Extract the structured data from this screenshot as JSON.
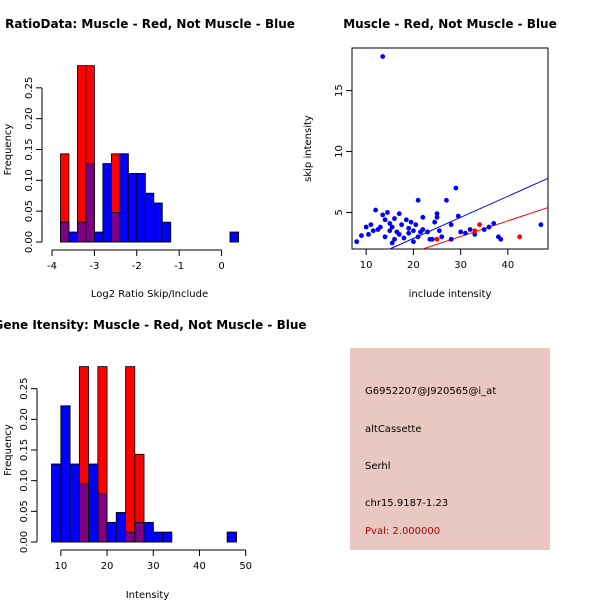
{
  "colors": {
    "red": "#ff0000",
    "blue": "#0000ff",
    "overlap": "#7f007f",
    "panel_bg": "#e8c8c0",
    "pval": "#b00000"
  },
  "chart_data": [
    {
      "id": "ratio",
      "type": "bar",
      "title": "RatioData: Muscle - Red, Not Muscle - Blue",
      "xlabel": "Log2 Ratio Skip/Include",
      "ylabel": "Frequency",
      "xlim": [
        -4,
        0.6
      ],
      "ylim": [
        0,
        0.3
      ],
      "xticks": [
        -4,
        -3,
        -2,
        -1,
        0
      ],
      "xtick_labels": [
        "-4",
        "-3",
        "-2",
        "-1",
        "0"
      ],
      "yticks": [
        0,
        0.05,
        0.1,
        0.15,
        0.2,
        0.25
      ],
      "ytick_labels": [
        "0.00",
        "0.05",
        "0.10",
        "0.15",
        "0.20",
        "0.25"
      ],
      "bin_width": 0.2,
      "series": [
        {
          "name": "Muscle",
          "color": "red",
          "bins": [
            {
              "x": -3.8,
              "v": 0.143
            },
            {
              "x": -3.4,
              "v": 0.286
            },
            {
              "x": -3.2,
              "v": 0.286
            },
            {
              "x": -2.6,
              "v": 0.143
            }
          ]
        },
        {
          "name": "Not Muscle",
          "color": "blue",
          "bins": [
            {
              "x": -3.8,
              "v": 0.032
            },
            {
              "x": -3.6,
              "v": 0.016
            },
            {
              "x": -3.4,
              "v": 0.032
            },
            {
              "x": -3.2,
              "v": 0.127
            },
            {
              "x": -3.0,
              "v": 0.016
            },
            {
              "x": -2.8,
              "v": 0.127
            },
            {
              "x": -2.6,
              "v": 0.048
            },
            {
              "x": -2.4,
              "v": 0.143
            },
            {
              "x": -2.2,
              "v": 0.111
            },
            {
              "x": -2.0,
              "v": 0.111
            },
            {
              "x": -1.8,
              "v": 0.079
            },
            {
              "x": -1.6,
              "v": 0.063
            },
            {
              "x": -1.4,
              "v": 0.032
            },
            {
              "x": 0.2,
              "v": 0.016
            }
          ]
        }
      ]
    },
    {
      "id": "scatter",
      "type": "scatter",
      "title": "Muscle - Red, Not Muscle - Blue",
      "xlabel": "include intensity",
      "ylabel": "skip intensity",
      "xlim": [
        7,
        48.5
      ],
      "ylim": [
        2,
        18.5
      ],
      "xticks": [
        10,
        20,
        30,
        40
      ],
      "xtick_labels": [
        "10",
        "20",
        "30",
        "40"
      ],
      "yticks": [
        5,
        10,
        15
      ],
      "ytick_labels": [
        "5",
        "10",
        "15"
      ],
      "blue_points": [
        [
          8,
          2.6
        ],
        [
          9,
          3.1
        ],
        [
          10,
          3.8
        ],
        [
          10.5,
          3.2
        ],
        [
          11,
          4.0
        ],
        [
          11.5,
          3.5
        ],
        [
          12,
          5.2
        ],
        [
          12.5,
          3.6
        ],
        [
          13,
          3.8
        ],
        [
          13.5,
          17.8
        ],
        [
          13.5,
          4.8
        ],
        [
          14,
          3.0
        ],
        [
          14,
          4.4
        ],
        [
          14.5,
          5.0
        ],
        [
          15,
          3.5
        ],
        [
          15,
          4.1
        ],
        [
          15.5,
          2.5
        ],
        [
          15.5,
          3.8
        ],
        [
          16,
          4.5
        ],
        [
          16,
          2.8
        ],
        [
          16.5,
          3.4
        ],
        [
          17,
          4.9
        ],
        [
          17,
          3.2
        ],
        [
          17.5,
          4.0
        ],
        [
          18,
          2.9
        ],
        [
          18.5,
          4.4
        ],
        [
          19,
          3.7
        ],
        [
          19,
          3.3
        ],
        [
          19.5,
          4.2
        ],
        [
          20,
          2.6
        ],
        [
          20,
          3.5
        ],
        [
          20.5,
          4.0
        ],
        [
          21,
          6.0
        ],
        [
          21,
          3.0
        ],
        [
          21.5,
          3.4
        ],
        [
          22,
          4.6
        ],
        [
          22,
          3.6
        ],
        [
          23,
          3.4
        ],
        [
          23.5,
          2.8
        ],
        [
          24,
          2.8
        ],
        [
          24.5,
          4.2
        ],
        [
          25,
          4.6
        ],
        [
          25,
          4.9
        ],
        [
          25.5,
          3.5
        ],
        [
          26,
          3.0
        ],
        [
          27,
          6.0
        ],
        [
          28,
          4.0
        ],
        [
          28,
          2.8
        ],
        [
          29,
          7.0
        ],
        [
          29.5,
          4.7
        ],
        [
          30,
          3.4
        ],
        [
          31,
          3.3
        ],
        [
          32,
          3.6
        ],
        [
          33,
          3.2
        ],
        [
          35,
          3.6
        ],
        [
          36,
          3.8
        ],
        [
          37,
          4.1
        ],
        [
          38,
          3.0
        ],
        [
          38.5,
          2.8
        ],
        [
          47,
          4.0
        ]
      ],
      "red_points": [
        [
          25,
          2.8
        ],
        [
          33,
          3.5
        ],
        [
          34,
          4.0
        ],
        [
          42.5,
          3.0
        ]
      ],
      "fit_lines": [
        {
          "color": "blue",
          "from": [
            15,
            2
          ],
          "to": [
            48.5,
            7.8
          ]
        },
        {
          "color": "red",
          "from": [
            22,
            2
          ],
          "to": [
            48.5,
            5.4
          ]
        }
      ]
    },
    {
      "id": "intensity",
      "type": "bar",
      "title": "Gene Itensity: Muscle - Red, Not Muscle - Blue",
      "xlabel": "Intensity",
      "ylabel": "Frequency",
      "xlim": [
        7,
        50.5
      ],
      "ylim": [
        0,
        0.3
      ],
      "xticks": [
        10,
        20,
        30,
        40,
        50
      ],
      "xtick_labels": [
        "10",
        "20",
        "30",
        "40",
        "50"
      ],
      "yticks": [
        0,
        0.05,
        0.1,
        0.15,
        0.2,
        0.25
      ],
      "ytick_labels": [
        "0.00",
        "0.05",
        "0.10",
        "0.15",
        "0.20",
        "0.25"
      ],
      "bin_width": 2,
      "series": [
        {
          "name": "Muscle",
          "color": "red",
          "bins": [
            {
              "x": 14,
              "v": 0.286
            },
            {
              "x": 18,
              "v": 0.286
            },
            {
              "x": 24,
              "v": 0.286
            },
            {
              "x": 26,
              "v": 0.143
            }
          ]
        },
        {
          "name": "Not Muscle",
          "color": "blue",
          "bins": [
            {
              "x": 8,
              "v": 0.127
            },
            {
              "x": 10,
              "v": 0.222
            },
            {
              "x": 12,
              "v": 0.127
            },
            {
              "x": 14,
              "v": 0.095
            },
            {
              "x": 16,
              "v": 0.127
            },
            {
              "x": 18,
              "v": 0.079
            },
            {
              "x": 20,
              "v": 0.032
            },
            {
              "x": 22,
              "v": 0.048
            },
            {
              "x": 24,
              "v": 0.016
            },
            {
              "x": 26,
              "v": 0.032
            },
            {
              "x": 28,
              "v": 0.032
            },
            {
              "x": 30,
              "v": 0.016
            },
            {
              "x": 32,
              "v": 0.016
            },
            {
              "x": 46,
              "v": 0.016
            }
          ]
        }
      ]
    }
  ],
  "info_panel": {
    "probe_id": "G6952207@J920565@i_at",
    "event_type": "altCassette",
    "gene": "Serhl",
    "location": "chr15.9187-1.23",
    "pval": "Pval: 2.000000"
  }
}
